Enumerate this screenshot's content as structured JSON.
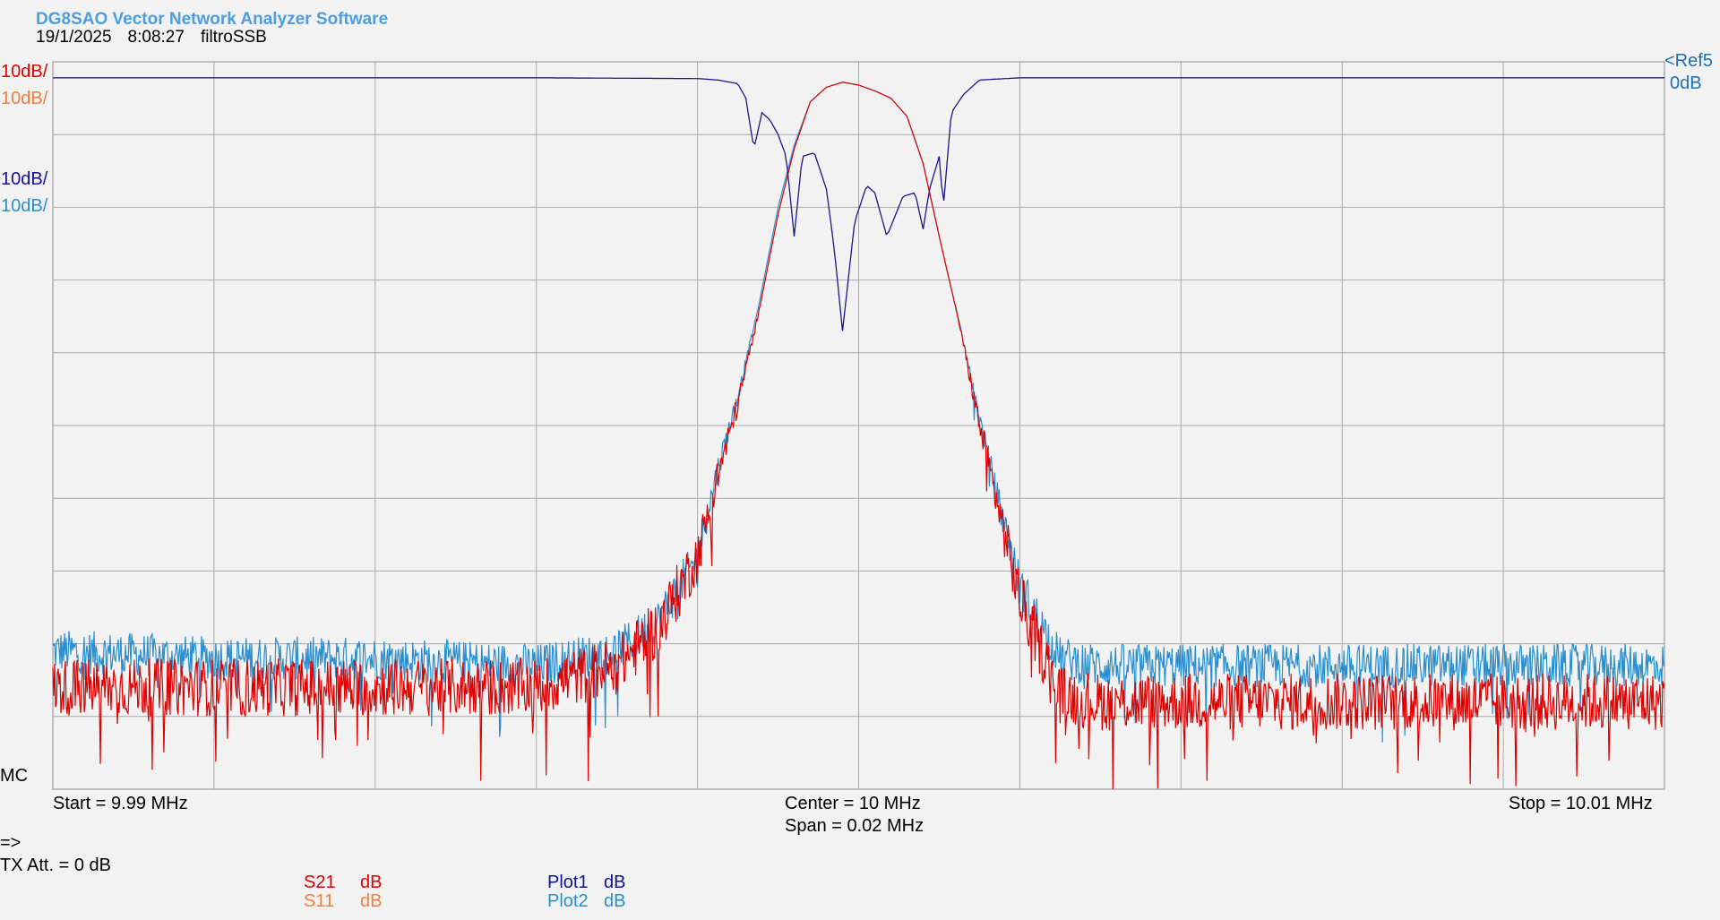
{
  "header": {
    "app_title": "DG8SAO Vector Network Analyzer Software",
    "date": "19/1/2025",
    "time": "8:08:27",
    "file_name": "filtroSSB"
  },
  "scale_labels": [
    {
      "text": "10dB/",
      "color": "#e00000"
    },
    {
      "text": "10dB/",
      "color": "#f08040"
    },
    {
      "text": "10dB/",
      "color": "#10109a"
    },
    {
      "text": "10dB/",
      "color": "#2a8fd0"
    }
  ],
  "ref": {
    "line1": "<Ref5",
    "line2": "0dB"
  },
  "mc_label": "MC",
  "footer": {
    "start": "Start = 9.99 MHz",
    "center": "Center = 10 MHz",
    "span": "Span = 0.02 MHz",
    "stop": "Stop = 10.01 MHz",
    "prompt": "=>",
    "tx_att": "TX Att.  = 0 dB"
  },
  "legend": [
    {
      "name": "S21",
      "unit": "dB",
      "color": "#e00000"
    },
    {
      "name": "S11",
      "unit": "dB",
      "color": "#f08040"
    },
    {
      "name": "Plot1",
      "unit": "dB",
      "color": "#10109a"
    },
    {
      "name": "Plot2",
      "unit": "dB",
      "color": "#2a8fd0"
    }
  ],
  "chart_data": {
    "type": "line",
    "x_unit": "MHz",
    "y_unit": "dB",
    "xlim": [
      9.99,
      10.01
    ],
    "ylim": [
      -98,
      2
    ],
    "grid": true,
    "x_divisions": 10,
    "y_divisions": 10,
    "series": [
      {
        "name": "S21",
        "color": "#e00000",
        "noise_db": 4,
        "x": [
          9.99,
          9.992,
          9.994,
          9.996,
          9.997,
          9.9975,
          9.998,
          9.99825,
          9.9985,
          9.99875,
          9.999,
          9.9992,
          9.9994,
          9.9996,
          9.9998,
          10.0,
          10.0002,
          10.0004,
          10.0006,
          10.0008,
          10.001,
          10.00125,
          10.0015,
          10.00175,
          10.002,
          10.0025,
          10.003,
          10.005,
          10.01
        ],
        "y": [
          -84,
          -84,
          -84,
          -84,
          -81,
          -76,
          -66,
          -55,
          -45,
          -33,
          -19,
          -10,
          -3.5,
          -1.5,
          -0.8,
          -1.2,
          -2,
          -3,
          -5.5,
          -12,
          -22,
          -34,
          -48,
          -60,
          -72,
          -85,
          -86,
          -86,
          -86
        ]
      },
      {
        "name": "S11",
        "color": "#f08040",
        "x": [
          9.99,
          9.996,
          9.998,
          9.99825,
          9.9985,
          9.9986,
          9.9987,
          9.9988,
          9.9989,
          9.999,
          9.9991,
          9.9992,
          9.9993,
          9.99945,
          9.9996,
          9.9997,
          9.9998,
          9.99995,
          10.0001,
          10.0002,
          10.00035,
          10.00055,
          10.0007,
          10.0008,
          10.00088,
          10.001,
          10.00105,
          10.00115,
          10.0013,
          10.0015,
          10.002,
          10.005,
          10.01
        ],
        "y": [
          -0.2,
          -0.2,
          -0.3,
          -0.5,
          -1,
          -3,
          -10,
          -5,
          -6,
          -8,
          -11,
          -22,
          -11,
          -10.5,
          -15.5,
          -24,
          -35,
          -20,
          -15,
          -16,
          -22,
          -16.5,
          -16,
          -21,
          -15.5,
          -11,
          -18,
          -5,
          -2.5,
          -0.5,
          -0.2,
          -0.2,
          -0.2
        ]
      },
      {
        "name": "Plot1",
        "color": "#10109a",
        "x": [
          9.99,
          9.996,
          9.998,
          9.99825,
          9.9985,
          9.9986,
          9.9987,
          9.9988,
          9.9989,
          9.999,
          9.9991,
          9.9992,
          9.9993,
          9.99945,
          9.9996,
          9.9997,
          9.9998,
          9.99995,
          10.0001,
          10.0002,
          10.00035,
          10.00055,
          10.0007,
          10.0008,
          10.00088,
          10.001,
          10.00105,
          10.00115,
          10.0013,
          10.0015,
          10.002,
          10.005,
          10.01
        ],
        "y": [
          -0.2,
          -0.2,
          -0.3,
          -0.5,
          -1,
          -3,
          -10,
          -5,
          -6,
          -8,
          -11,
          -22,
          -11,
          -10.5,
          -15.5,
          -24,
          -35,
          -20,
          -15,
          -16,
          -22,
          -16.5,
          -16,
          -21,
          -15.5,
          -11,
          -18,
          -5,
          -2.5,
          -0.5,
          -0.2,
          -0.2,
          -0.2
        ]
      },
      {
        "name": "Plot2",
        "color": "#2a8fd0",
        "noise_db": 3,
        "x": [
          9.99,
          9.992,
          9.994,
          9.996,
          9.997,
          9.9975,
          9.998,
          9.99825,
          9.9985,
          9.99875,
          9.999,
          9.9992,
          9.9994,
          9.9996,
          9.9998,
          10.0,
          10.0002,
          10.0004,
          10.0006,
          10.0008,
          10.001,
          10.00125,
          10.0015,
          10.00175,
          10.002,
          10.0025,
          10.003,
          10.005,
          10.01
        ],
        "y": [
          -79,
          -80,
          -80,
          -81,
          -79,
          -75,
          -66,
          -54,
          -44,
          -32,
          -18,
          -9.5,
          -3.5,
          -1.5,
          -0.8,
          -1.2,
          -2,
          -3,
          -5.5,
          -12,
          -22,
          -34,
          -47,
          -59,
          -70,
          -80,
          -81,
          -81,
          -81
        ]
      }
    ]
  }
}
